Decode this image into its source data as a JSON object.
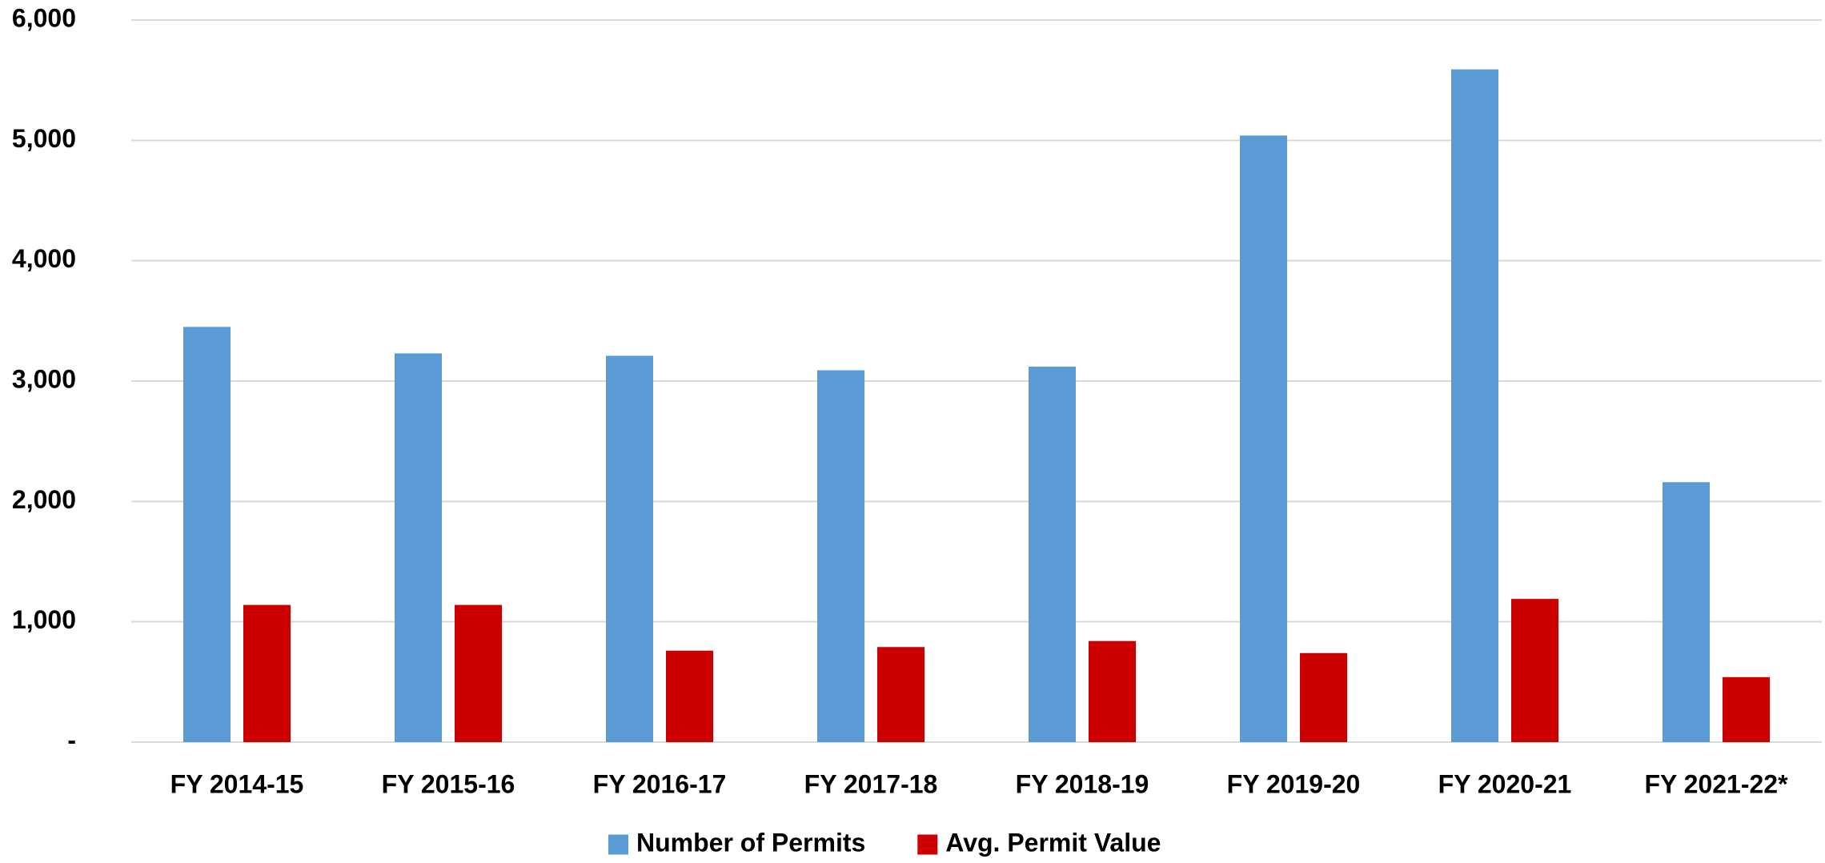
{
  "chart_data": {
    "type": "bar",
    "categories": [
      "FY 2014-15",
      "FY 2015-16",
      "FY 2016-17",
      "FY 2017-18",
      "FY 2018-19",
      "FY 2019-20",
      "FY 2020-21",
      "FY 2021-22*"
    ],
    "series": [
      {
        "name": "Number of Permits",
        "color": "#5b9bd5",
        "values": [
          3450,
          3230,
          3210,
          3090,
          3120,
          5040,
          5590,
          2160
        ]
      },
      {
        "name": "Avg. Permit Value",
        "color": "#cc0000",
        "values": [
          1140,
          1140,
          760,
          790,
          840,
          740,
          1190,
          540
        ]
      }
    ],
    "ylim": [
      0,
      6000
    ],
    "yticks": [
      {
        "value": 0,
        "label": "-"
      },
      {
        "value": 1000,
        "label": "1,000"
      },
      {
        "value": 2000,
        "label": "2,000"
      },
      {
        "value": 3000,
        "label": "3,000"
      },
      {
        "value": 4000,
        "label": "4,000"
      },
      {
        "value": 5000,
        "label": "5,000"
      },
      {
        "value": 6000,
        "label": "6,000"
      }
    ],
    "grid": true,
    "legend": "bottom"
  }
}
